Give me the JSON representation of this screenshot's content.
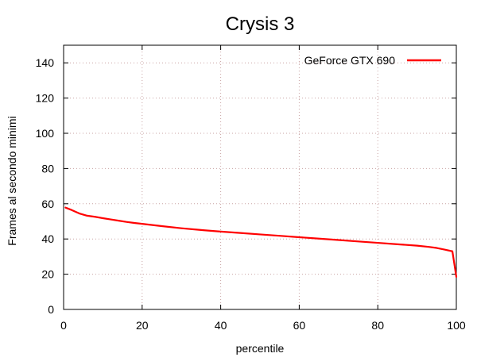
{
  "chart_data": {
    "type": "line",
    "title": "Crysis 3",
    "xlabel": "percentile",
    "ylabel": "Frames al secondo minimi",
    "xlim": [
      0,
      100
    ],
    "ylim": [
      0,
      150
    ],
    "xticks": [
      0,
      20,
      40,
      60,
      80,
      100
    ],
    "yticks": [
      0,
      20,
      40,
      60,
      80,
      100,
      120,
      140
    ],
    "grid": true,
    "legend_position": "top-right",
    "series": [
      {
        "name": "GeForce GTX 690",
        "color": "#ff0000",
        "x": [
          0.5,
          2,
          4,
          6,
          8,
          10,
          12,
          14,
          16,
          18,
          20,
          25,
          30,
          35,
          40,
          45,
          50,
          55,
          60,
          65,
          70,
          75,
          80,
          85,
          90,
          93,
          95,
          97,
          99,
          100
        ],
        "y": [
          57.8,
          56.5,
          54.5,
          53.2,
          52.6,
          51.8,
          51.1,
          50.4,
          49.7,
          49.1,
          48.6,
          47.3,
          46.1,
          45.1,
          44.2,
          43.4,
          42.6,
          41.8,
          41.0,
          40.2,
          39.4,
          38.6,
          37.8,
          37.0,
          36.2,
          35.5,
          34.9,
          34.0,
          33.0,
          18.5
        ]
      }
    ]
  }
}
